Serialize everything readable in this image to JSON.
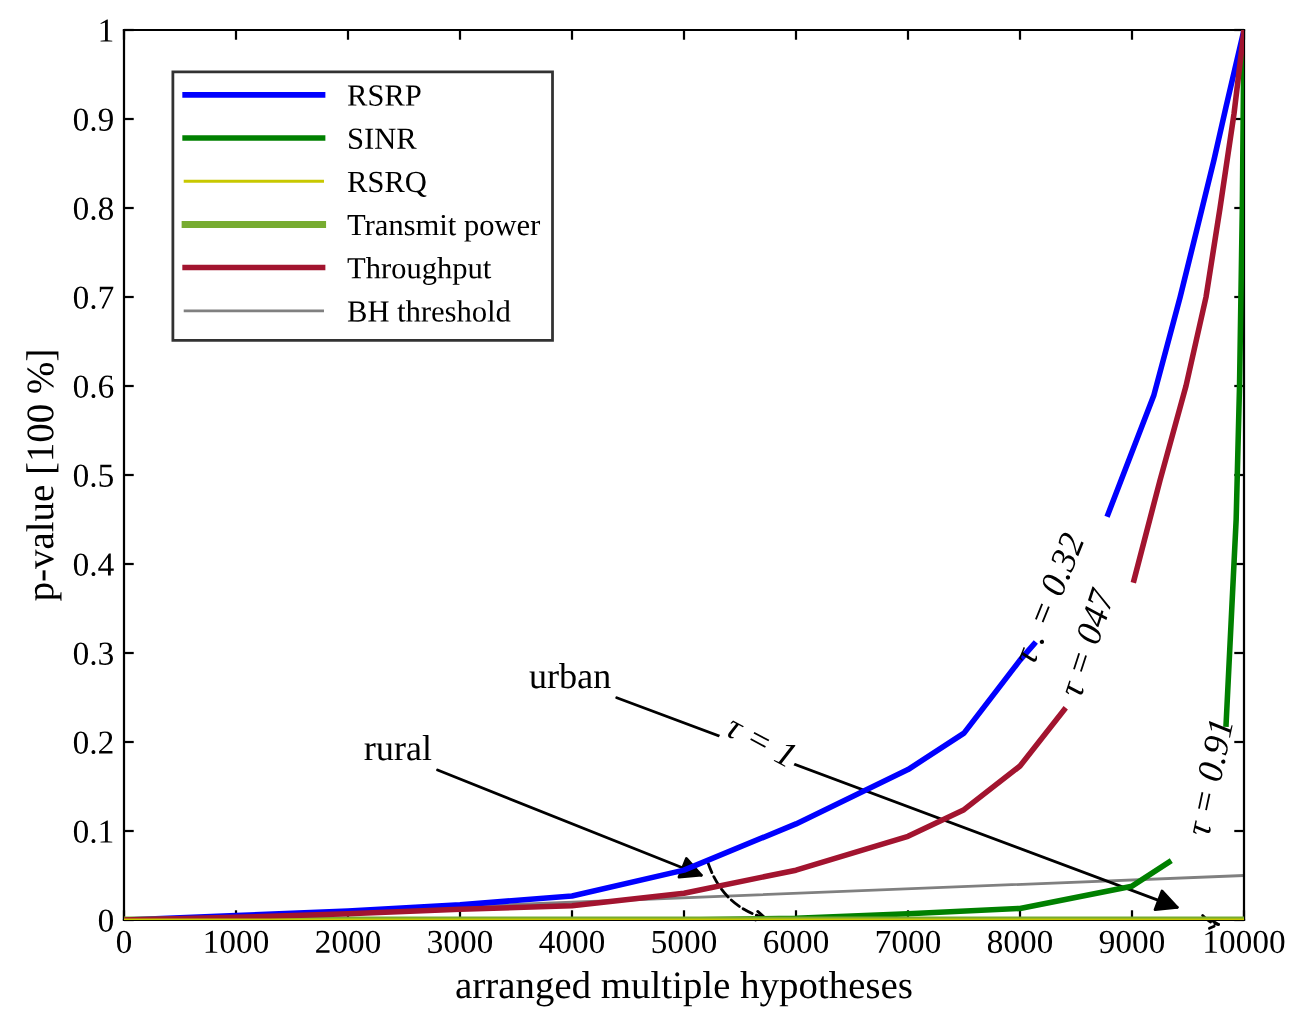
{
  "chart_data": {
    "type": "line",
    "xlabel": "arranged multiple hypotheses",
    "ylabel": "p-value [100 %]",
    "xlim": [
      0,
      10000
    ],
    "ylim": [
      0,
      1
    ],
    "xticks": [
      0,
      1000,
      2000,
      3000,
      4000,
      5000,
      6000,
      7000,
      8000,
      9000,
      10000
    ],
    "yticks": [
      0,
      0.1,
      0.2,
      0.3,
      0.4,
      0.5,
      0.6,
      0.7,
      0.8,
      0.9,
      1
    ],
    "grid": false,
    "legend": "top left",
    "marker": "none",
    "line_style": "solid",
    "series": [
      {
        "name": "RSRP",
        "color": "#0000ff",
        "x": [
          0,
          1000,
          2000,
          3000,
          4000,
          5000,
          6000,
          7000,
          7500,
          8000,
          8125,
          8450,
          8786,
          9196,
          9430,
          9607,
          9732,
          9840,
          10000
        ],
        "values": [
          0,
          0.005,
          0.01,
          0.017,
          0.027,
          0.056,
          0.108,
          0.169,
          0.21,
          0.292,
          0.31,
          null,
          0.456,
          0.59,
          0.7,
          0.79,
          0.854,
          0.914,
          1
        ]
      },
      {
        "name": "SINR",
        "color": "#008000",
        "x": [
          0,
          5000,
          6000,
          7000,
          8000,
          9000,
          9330,
          9600,
          9840,
          9930,
          9960,
          9985,
          10000
        ],
        "values": [
          0,
          0,
          0.002,
          0.007,
          0.013,
          0.038,
          0.065,
          null,
          0.22,
          0.45,
          0.6,
          0.8,
          1
        ]
      },
      {
        "name": "RSRQ",
        "color": "#c8c800",
        "x": [
          0,
          10000
        ],
        "values": [
          0,
          0
        ]
      },
      {
        "name": "Transmit power",
        "color": "#77ac30",
        "x": [
          0,
          10000
        ],
        "values": [
          0,
          0
        ]
      },
      {
        "name": "Throughput",
        "color": "#a2142f",
        "x": [
          0,
          1000,
          2000,
          3000,
          4000,
          5000,
          6000,
          7000,
          7500,
          8000,
          8393,
          8700,
          9018,
          9250,
          9482,
          9661,
          9786,
          9911,
          10000
        ],
        "values": [
          0,
          0.003,
          0.007,
          0.012,
          0.016,
          0.03,
          0.056,
          0.094,
          0.124,
          0.173,
          0.236,
          null,
          0.382,
          0.494,
          0.6,
          0.7,
          0.8,
          0.906,
          1
        ]
      },
      {
        "name": "BH threshold",
        "color": "#808080",
        "x": [
          0,
          10000
        ],
        "values": [
          0,
          0.05
        ]
      }
    ],
    "annotations": [
      {
        "text": "urban",
        "x": 9430,
        "y": 0.013
      },
      {
        "text": "rural",
        "x": 5180,
        "y": 0.049
      },
      "τ = 1",
      "τ . = 0.32",
      "τ = 047",
      "τ = 0.91"
    ]
  }
}
